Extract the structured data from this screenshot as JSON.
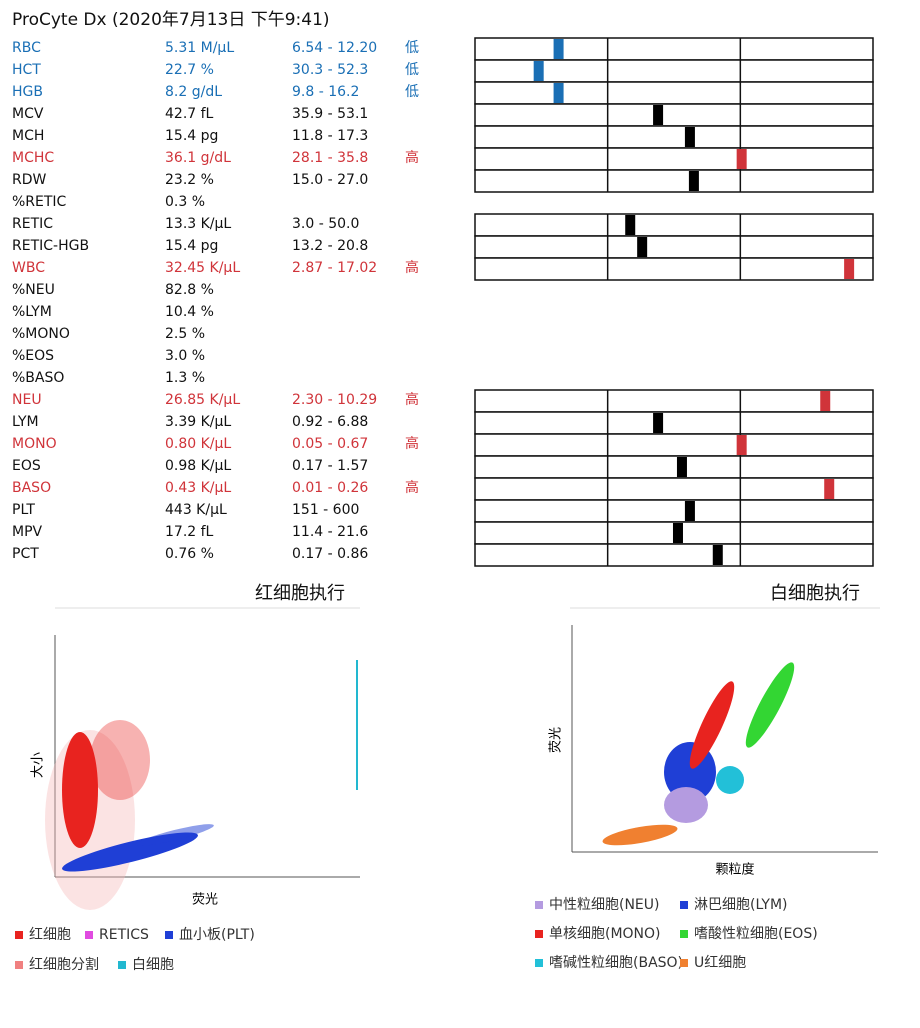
{
  "header": {
    "title": "ProCyte Dx (2020年7月13日 下午9:41)"
  },
  "rows": [
    {
      "name": "RBC",
      "result": "5.31 M/μL",
      "range": "6.54 - 12.20",
      "flag": "低",
      "color": "#1a6fb5",
      "gauge": 21
    },
    {
      "name": "HCT",
      "result": "22.7 %",
      "range": "30.3 - 52.3",
      "flag": "低",
      "color": "#1a6fb5",
      "gauge": 16
    },
    {
      "name": "HGB",
      "result": "8.2 g/dL",
      "range": "9.8 - 16.2",
      "flag": "低",
      "color": "#1a6fb5",
      "gauge": 21
    },
    {
      "name": "MCV",
      "result": "42.7 fL",
      "range": "35.9 - 53.1",
      "color": "#111111",
      "gauge": 46
    },
    {
      "name": "MCH",
      "result": "15.4 pg",
      "range": "11.8 - 17.3",
      "color": "#111111",
      "gauge": 54
    },
    {
      "name": "MCHC",
      "result": "36.1 g/dL",
      "range": "28.1 - 35.8",
      "flag": "高",
      "color": "#d0343a",
      "gauge": 67
    },
    {
      "name": "RDW",
      "result": "23.2 %",
      "range": "15.0 - 27.0",
      "color": "#111111",
      "gauge": 55
    },
    {
      "name": "%RETIC",
      "result": "0.3 %",
      "color": "#111111"
    },
    {
      "name": "RETIC",
      "result": "13.3 K/μL",
      "range": "3.0 - 50.0",
      "color": "#111111",
      "gauge": 39
    },
    {
      "name": "RETIC-HGB",
      "result": "15.4 pg",
      "range": "13.2 - 20.8",
      "color": "#111111",
      "gauge": 42
    },
    {
      "name": "WBC",
      "result": "32.45 K/μL",
      "range": "2.87 - 17.02",
      "flag": "高",
      "color": "#d0343a",
      "gauge": 94
    },
    {
      "name": "%NEU",
      "result": "82.8 %",
      "color": "#111111"
    },
    {
      "name": "%LYM",
      "result": "10.4 %",
      "color": "#111111"
    },
    {
      "name": "%MONO",
      "result": "2.5 %",
      "color": "#111111"
    },
    {
      "name": "%EOS",
      "result": "3.0 %",
      "color": "#111111"
    },
    {
      "name": "%BASO",
      "result": "1.3 %",
      "color": "#111111"
    },
    {
      "name": "NEU",
      "result": "26.85 K/μL",
      "range": "2.30 - 10.29",
      "flag": "高",
      "color": "#d0343a",
      "gauge": 88
    },
    {
      "name": "LYM",
      "result": "3.39 K/μL",
      "range": "0.92 - 6.88",
      "color": "#111111",
      "gauge": 46
    },
    {
      "name": "MONO",
      "result": "0.80 K/μL",
      "range": "0.05 - 0.67",
      "flag": "高",
      "color": "#d0343a",
      "gauge": 67
    },
    {
      "name": "EOS",
      "result": "0.98 K/μL",
      "range": "0.17 - 1.57",
      "color": "#111111",
      "gauge": 52
    },
    {
      "name": "BASO",
      "result": "0.43 K/μL",
      "range": "0.01 - 0.26",
      "flag": "高",
      "color": "#d0343a",
      "gauge": 89
    },
    {
      "name": "PLT",
      "result": "443 K/μL",
      "range": "151 - 600",
      "color": "#111111",
      "gauge": 54
    },
    {
      "name": "MPV",
      "result": "17.2 fL",
      "range": "11.4 - 21.6",
      "color": "#111111",
      "gauge": 51
    },
    {
      "name": "PCT",
      "result": "0.76 %",
      "range": "0.17 - 0.86",
      "color": "#111111",
      "gauge": 61
    }
  ],
  "plots": [
    {
      "title": "红细胞执行",
      "y_label": "大小",
      "x_label": "荧光",
      "legend": [
        {
          "name": "红细胞",
          "color": "#e8231f"
        },
        {
          "name": "RETICS",
          "color": "#e04be0"
        },
        {
          "name": "血小板(PLT)",
          "color": "#1f3fd6"
        },
        {
          "name": "红细胞分割",
          "color": "#f08080"
        },
        {
          "name": "白细胞",
          "color": "#22b8d0"
        }
      ]
    },
    {
      "title": "白细胞执行",
      "y_label": "荧光",
      "x_label": "颗粒度",
      "legend": [
        {
          "name": "中性粒细胞(NEU)",
          "color": "#b49be0"
        },
        {
          "name": "淋巴细胞(LYM)",
          "color": "#1f3fd6"
        },
        {
          "name": "单核细胞(MONO)",
          "color": "#e8231f"
        },
        {
          "name": "嗜酸性粒细胞(EOS)",
          "color": "#33d633"
        },
        {
          "name": "嗜碱性粒细胞(BASO)",
          "color": "#22c0d8"
        },
        {
          "name": "U红细胞",
          "color": "#f08030"
        }
      ]
    }
  ]
}
